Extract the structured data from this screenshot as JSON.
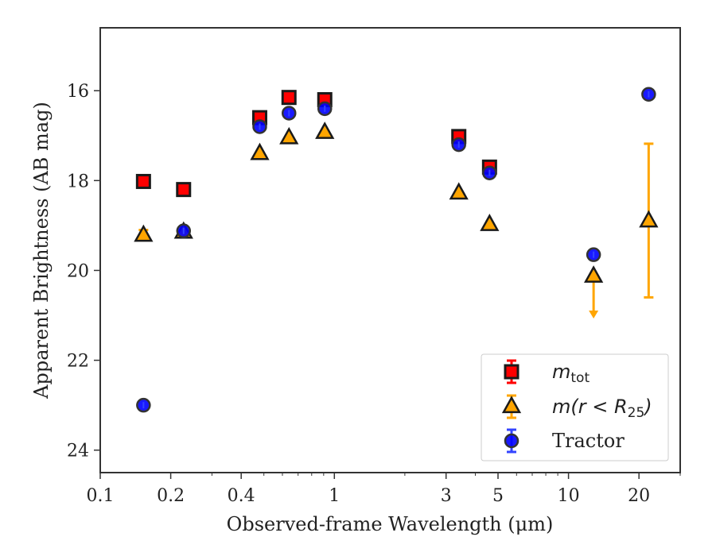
{
  "chart_data": {
    "type": "scatter",
    "xlabel": "Observed-frame Wavelength (μm)",
    "ylabel": "Apparent Brightness (AB mag)",
    "xscale": "log",
    "xlim": [
      0.1,
      30
    ],
    "ylim": [
      24.5,
      14.6
    ],
    "y_inverted": true,
    "xticks": [
      {
        "value": 0.1,
        "label": "0.1"
      },
      {
        "value": 0.2,
        "label": "0.2"
      },
      {
        "value": 0.4,
        "label": "0.4"
      },
      {
        "value": 1,
        "label": "1"
      },
      {
        "value": 3,
        "label": "3"
      },
      {
        "value": 5,
        "label": "5"
      },
      {
        "value": 10,
        "label": "10"
      },
      {
        "value": 20,
        "label": "20"
      }
    ],
    "yticks": [
      {
        "value": 16,
        "label": "16"
      },
      {
        "value": 18,
        "label": "18"
      },
      {
        "value": 20,
        "label": "20"
      },
      {
        "value": 22,
        "label": "22"
      },
      {
        "value": 24,
        "label": "24"
      }
    ],
    "grid": false,
    "legend_position": "lower-right",
    "series": [
      {
        "key": "mtot",
        "label_math": "m",
        "label_sub": "tot",
        "marker": "square",
        "color": "#ff0000",
        "edge": "#1a1a1a",
        "points": [
          {
            "x": 0.153,
            "y": 18.02
          },
          {
            "x": 0.227,
            "y": 18.2
          },
          {
            "x": 0.48,
            "y": 16.6
          },
          {
            "x": 0.64,
            "y": 16.15
          },
          {
            "x": 0.91,
            "y": 16.2
          },
          {
            "x": 3.4,
            "y": 17.02
          },
          {
            "x": 4.6,
            "y": 17.7
          }
        ]
      },
      {
        "key": "mr25",
        "label_math": "m(r < R",
        "label_sub": "25",
        "label_end": ")",
        "marker": "triangle",
        "color": "#ffa500",
        "edge": "#1a1a1a",
        "points": [
          {
            "x": 0.153,
            "y": 19.22,
            "err": 0.12
          },
          {
            "x": 0.227,
            "y": 19.15
          },
          {
            "x": 0.48,
            "y": 17.4
          },
          {
            "x": 0.64,
            "y": 17.05
          },
          {
            "x": 0.91,
            "y": 16.93
          },
          {
            "x": 3.4,
            "y": 18.28
          },
          {
            "x": 4.6,
            "y": 18.98
          },
          {
            "x": 12.8,
            "y": 20.13,
            "upper_limit_to": 21.0
          },
          {
            "x": 22.0,
            "y": 18.9,
            "err_lo": 17.18,
            "err_hi": 20.6
          }
        ]
      },
      {
        "key": "tractor",
        "label_math": "",
        "label_text": "Tractor",
        "marker": "circle",
        "color": "#0000ff",
        "edge": "#333333",
        "points": [
          {
            "x": 0.153,
            "y": 23.0
          },
          {
            "x": 0.227,
            "y": 19.12
          },
          {
            "x": 0.48,
            "y": 16.8
          },
          {
            "x": 0.64,
            "y": 16.5
          },
          {
            "x": 0.91,
            "y": 16.4
          },
          {
            "x": 3.4,
            "y": 17.2
          },
          {
            "x": 4.6,
            "y": 17.83
          },
          {
            "x": 12.8,
            "y": 19.65
          },
          {
            "x": 22.0,
            "y": 16.08
          }
        ]
      }
    ]
  }
}
